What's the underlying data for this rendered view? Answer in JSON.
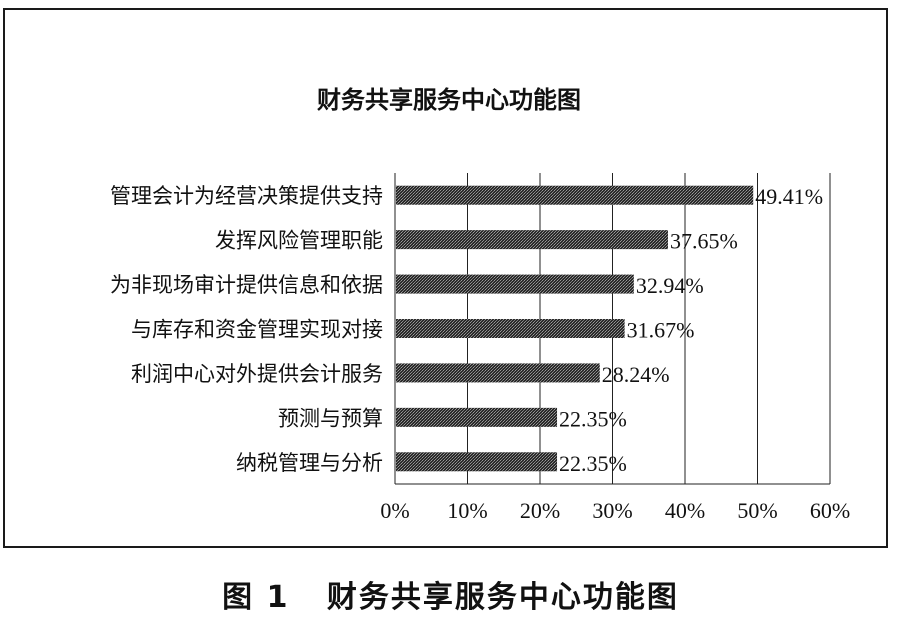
{
  "chart_data": {
    "type": "bar",
    "orientation": "horizontal",
    "title": "财务共享服务中心功能图",
    "categories": [
      "管理会计为经营决策提供支持",
      "发挥风险管理职能",
      "为非现场审计提供信息和依据",
      "与库存和资金管理实现对接",
      "利润中心对外提供会计服务",
      "预测与预算",
      "纳税管理与分析"
    ],
    "values": [
      49.41,
      37.65,
      32.94,
      31.67,
      28.24,
      22.35,
      22.35
    ],
    "value_labels": [
      "49.41%",
      "37.65%",
      "32.94%",
      "31.67%",
      "28.24%",
      "22.35%",
      "22.35%"
    ],
    "xlim": [
      0,
      60
    ],
    "x_ticks": [
      "0%",
      "10%",
      "20%",
      "30%",
      "40%",
      "50%",
      "60%"
    ],
    "grid": "vertical",
    "bar_color": "#3a3a3a"
  },
  "caption": {
    "label": "图 1",
    "title": "财务共享服务中心功能图"
  }
}
